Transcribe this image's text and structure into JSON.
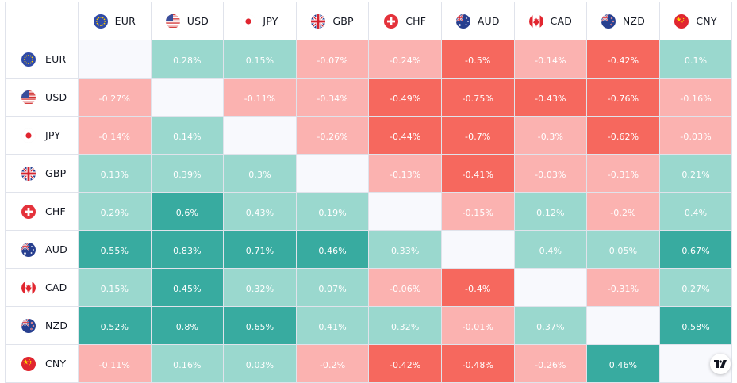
{
  "currencies": [
    {
      "code": "EUR",
      "flag": "eu-flag-icon"
    },
    {
      "code": "USD",
      "flag": "us-flag-icon"
    },
    {
      "code": "JPY",
      "flag": "jp-flag-icon"
    },
    {
      "code": "GBP",
      "flag": "gb-flag-icon"
    },
    {
      "code": "CHF",
      "flag": "ch-flag-icon"
    },
    {
      "code": "AUD",
      "flag": "au-flag-icon"
    },
    {
      "code": "CAD",
      "flag": "ca-flag-icon"
    },
    {
      "code": "NZD",
      "flag": "nz-flag-icon"
    },
    {
      "code": "CNY",
      "flag": "cn-flag-icon"
    }
  ],
  "matrix": [
    [
      null,
      "0.28%",
      "0.15%",
      "-0.07%",
      "-0.24%",
      "-0.5%",
      "-0.14%",
      "-0.42%",
      "0.1%"
    ],
    [
      "-0.27%",
      null,
      "-0.11%",
      "-0.34%",
      "-0.49%",
      "-0.75%",
      "-0.43%",
      "-0.76%",
      "-0.16%"
    ],
    [
      "-0.14%",
      "0.14%",
      null,
      "-0.26%",
      "-0.44%",
      "-0.7%",
      "-0.3%",
      "-0.62%",
      "-0.03%"
    ],
    [
      "0.13%",
      "0.39%",
      "0.3%",
      null,
      "-0.13%",
      "-0.41%",
      "-0.03%",
      "-0.31%",
      "0.21%"
    ],
    [
      "0.29%",
      "0.6%",
      "0.43%",
      "0.19%",
      null,
      "-0.15%",
      "0.12%",
      "-0.2%",
      "0.4%"
    ],
    [
      "0.55%",
      "0.83%",
      "0.71%",
      "0.46%",
      "0.33%",
      null,
      "0.4%",
      "0.05%",
      "0.67%"
    ],
    [
      "0.15%",
      "0.45%",
      "0.32%",
      "0.07%",
      "-0.06%",
      "-0.4%",
      null,
      "-0.31%",
      "0.27%"
    ],
    [
      "0.52%",
      "0.8%",
      "0.65%",
      "0.41%",
      "0.32%",
      "-0.01%",
      "0.37%",
      null,
      "0.58%"
    ],
    [
      "-0.11%",
      "0.16%",
      "0.03%",
      "-0.2%",
      "-0.42%",
      "-0.48%",
      "-0.26%",
      "0.46%",
      null
    ]
  ],
  "colors": {
    "pos_light": "#9ad8ce",
    "pos_strong": "#38aba0",
    "neg_light": "#fbb2b0",
    "neg_strong": "#f6685e",
    "diagonal": "#f8f9fd"
  }
}
